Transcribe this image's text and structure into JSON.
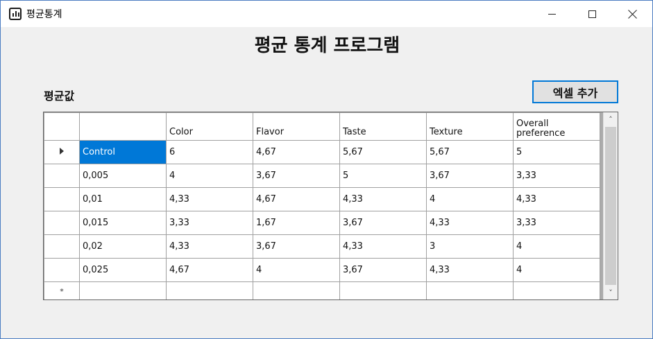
{
  "window": {
    "title": "평균통계"
  },
  "heading": "평균 통계 프로그램",
  "section_label": "평균값",
  "excel_button_label": "엑셀 추가",
  "grid": {
    "columns": [
      "",
      "Color",
      "Flavor",
      "Taste",
      "Texture",
      "Overall preference"
    ],
    "rows": [
      [
        "Control",
        "6",
        "4,67",
        "5,67",
        "5,67",
        "5"
      ],
      [
        "0,005",
        "4",
        "3,67",
        "5",
        "3,67",
        "3,33"
      ],
      [
        "0,01",
        "4,33",
        "4,67",
        "4,33",
        "4",
        "4,33"
      ],
      [
        "0,015",
        "3,33",
        "1,67",
        "3,67",
        "4,33",
        "3,33"
      ],
      [
        "0,02",
        "4,33",
        "3,67",
        "4,33",
        "3",
        "4"
      ],
      [
        "0,025",
        "4,67",
        "4",
        "3,67",
        "4,33",
        "4"
      ]
    ],
    "new_row_marker": "*",
    "current_row_marker_icon": "triangle-right-icon",
    "selected_cell": "Control"
  },
  "colors": {
    "selection": "#0078d7",
    "button_border": "#0078d7"
  }
}
